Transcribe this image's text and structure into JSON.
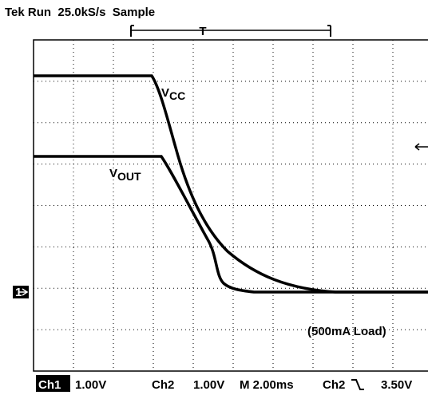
{
  "header": {
    "status": "Tek Run  25.0kS/s  Sample",
    "trigger_marker": "T"
  },
  "traces": [
    {
      "label_main": "V",
      "label_sub": "CC"
    },
    {
      "label_main": "V",
      "label_sub": "OUT"
    }
  ],
  "annotation": "(500mA Load)",
  "channel_marker": "1",
  "footer": {
    "ch1": "Ch1",
    "ch1_scale": "1.00V",
    "ch2": "Ch2",
    "ch2_scale": "1.00V",
    "timebase": "M 2.00ms",
    "trigger_source": "Ch2",
    "trigger_level": "3.50V"
  }
}
